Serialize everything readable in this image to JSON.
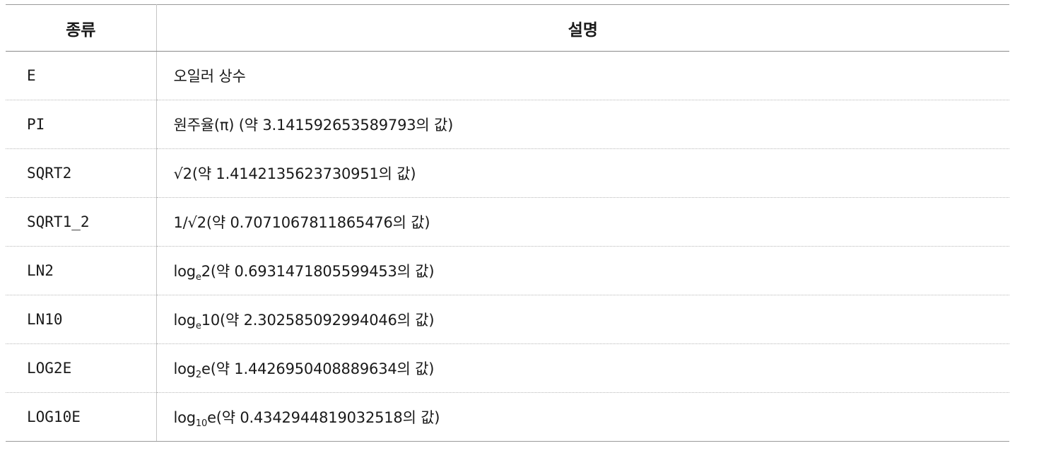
{
  "table": {
    "headers": [
      "종류",
      "설명"
    ],
    "rows": [
      {
        "kind": "E",
        "desc": {
          "pre": "오일러 상수",
          "sub": "",
          "post": ""
        }
      },
      {
        "kind": "PI",
        "desc": {
          "pre": "원주율(π) (약 3.141592653589793의 값)",
          "sub": "",
          "post": ""
        }
      },
      {
        "kind": "SQRT2",
        "desc": {
          "pre": "√2(약 1.4142135623730951의 값)",
          "sub": "",
          "post": ""
        }
      },
      {
        "kind": "SQRT1_2",
        "desc": {
          "pre": "1/√2(약 0.7071067811865476의 값)",
          "sub": "",
          "post": ""
        }
      },
      {
        "kind": "LN2",
        "desc": {
          "pre": "log",
          "sub": "e",
          "post": "2(약 0.6931471805599453의 값)"
        }
      },
      {
        "kind": "LN10",
        "desc": {
          "pre": "log",
          "sub": "e",
          "post": "10(약 2.302585092994046의 값)"
        }
      },
      {
        "kind": "LOG2E",
        "desc": {
          "pre": "log",
          "sub": "2",
          "post": "e(약 1.4426950408889634의 값)"
        }
      },
      {
        "kind": "LOG10E",
        "desc": {
          "pre": "log",
          "sub": "10",
          "post": "e(약 0.4342944819032518의 값)"
        }
      }
    ]
  }
}
